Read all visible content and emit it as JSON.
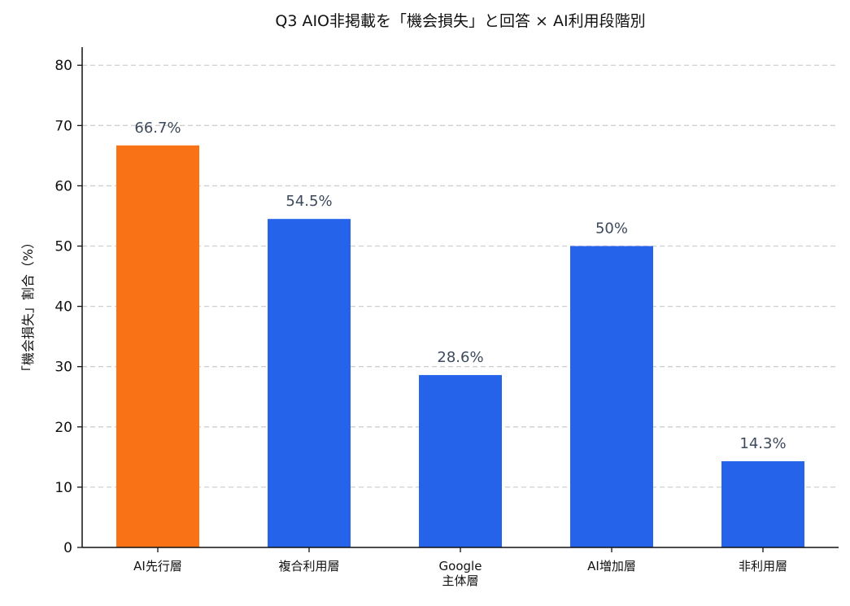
{
  "chart_data": {
    "type": "bar",
    "title": "Q3 AIO非掲載を「機会損失」と回答 × AI利用段階別",
    "xlabel": "",
    "ylabel": "「機会損失」割合（%）",
    "ylim": [
      0,
      83
    ],
    "yticks": [
      0,
      10,
      20,
      30,
      40,
      50,
      60,
      70,
      80
    ],
    "grid": true,
    "categories": [
      [
        "AI先行層"
      ],
      [
        "複合利用層"
      ],
      [
        "Google",
        "主体層"
      ],
      [
        "AI増加層"
      ],
      [
        "非利用層"
      ]
    ],
    "values": [
      66.7,
      54.5,
      28.6,
      50,
      14.3
    ],
    "data_labels": [
      "66.7%",
      "54.5%",
      "28.6%",
      "50%",
      "14.3%"
    ],
    "colors": [
      "#f97316",
      "#2563eb",
      "#2563eb",
      "#2563eb",
      "#2563eb"
    ]
  }
}
